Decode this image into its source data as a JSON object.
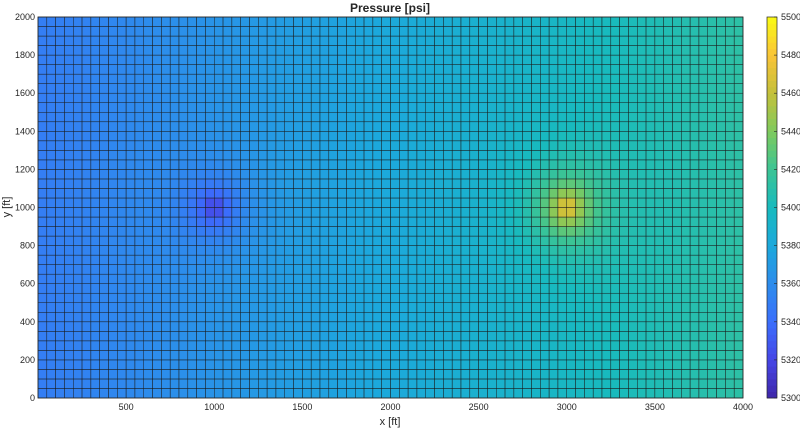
{
  "chart_data": {
    "type": "heatmap",
    "title": "Pressure [psi]",
    "xlabel": "x [ft]",
    "ylabel": "y [ft]",
    "xlim": [
      0,
      4000
    ],
    "ylim": [
      0,
      2000
    ],
    "x_ticks": [
      500,
      1000,
      1500,
      2000,
      2500,
      3000,
      3500,
      4000
    ],
    "y_ticks": [
      0,
      200,
      400,
      600,
      800,
      1000,
      1200,
      1400,
      1600,
      1800,
      2000
    ],
    "grid_cells": {
      "nx": 80,
      "ny": 40
    },
    "field": {
      "description_free": true,
      "left_edge_value": 5350,
      "right_edge_value": 5412,
      "injector": {
        "x": 3000,
        "y": 1000,
        "peak": 5485
      },
      "producer": {
        "x": 1000,
        "y": 1000,
        "trough": 5310
      }
    },
    "colorbar": {
      "min": 5300,
      "max": 5500,
      "ticks": [
        5300,
        5320,
        5340,
        5360,
        5380,
        5400,
        5420,
        5440,
        5460,
        5480,
        5500
      ],
      "colormap": "parula"
    }
  }
}
